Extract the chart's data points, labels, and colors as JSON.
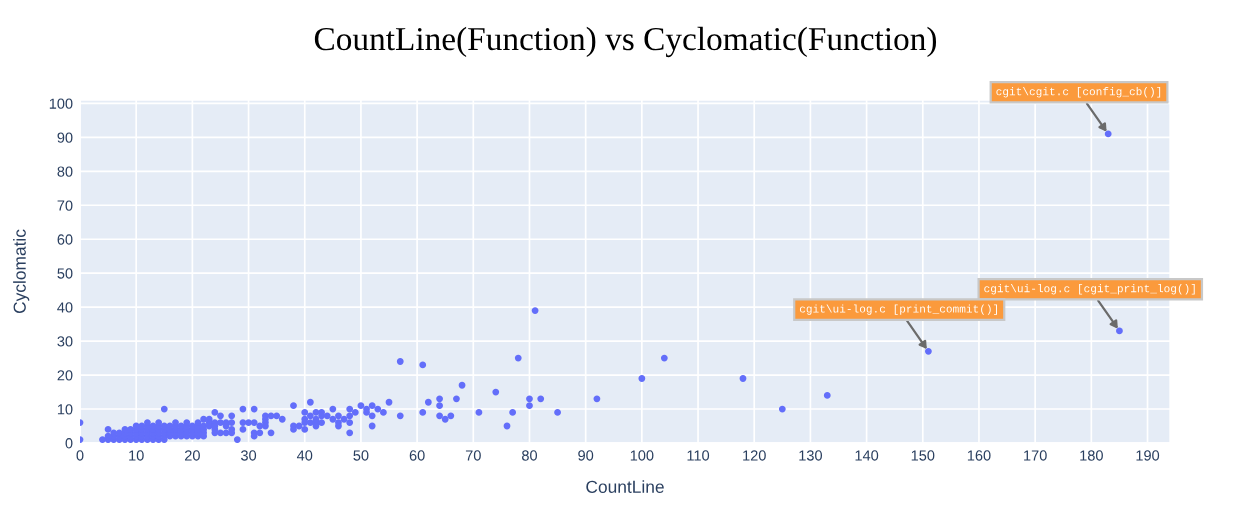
{
  "chart_data": {
    "type": "scatter",
    "title": "CountLine(Function) vs Cyclomatic(Function)",
    "xlabel": "CountLine",
    "ylabel": "Cyclomatic",
    "series": [
      {
        "color": "#636efa",
        "x": [
          4,
          5,
          6,
          7,
          8,
          9,
          10,
          11,
          12,
          13,
          14,
          15,
          5,
          6,
          7,
          8,
          9,
          10,
          11,
          12,
          13,
          14,
          15,
          16,
          17,
          18,
          19,
          20,
          21,
          22,
          6,
          7,
          8,
          9,
          10,
          11,
          12,
          13,
          14,
          15,
          16,
          17,
          18,
          19,
          20,
          21,
          22,
          8,
          9,
          10,
          11,
          12,
          13,
          14,
          15,
          16,
          17,
          18,
          19,
          20,
          21,
          22,
          10,
          11,
          12,
          13,
          14,
          15,
          16,
          17,
          18,
          19,
          20,
          21,
          22,
          0,
          0,
          5,
          15,
          12,
          14,
          17,
          19,
          21,
          22,
          23,
          23,
          23,
          24,
          24,
          24,
          24,
          24,
          25,
          25,
          25,
          26,
          26,
          26,
          27,
          27,
          27,
          27,
          28,
          29,
          29,
          29,
          30,
          31,
          31,
          31,
          31,
          32,
          32,
          33,
          33,
          33,
          33,
          34,
          34,
          35,
          36,
          38,
          38,
          38,
          39,
          40,
          40,
          40,
          40,
          41,
          41,
          41,
          42,
          42,
          42,
          42,
          43,
          43,
          43,
          44,
          45,
          45,
          46,
          46,
          46,
          47,
          48,
          48,
          48,
          48,
          49,
          50,
          51,
          51,
          52,
          52,
          52,
          53,
          54,
          55,
          57,
          57,
          61,
          61,
          62,
          64,
          64,
          64,
          65,
          66,
          67,
          68,
          71,
          74,
          76,
          77,
          78,
          80,
          80,
          81,
          82,
          85,
          92,
          100,
          104,
          118,
          125,
          133,
          151,
          183,
          185
        ],
        "values": [
          1,
          1,
          1,
          1,
          1,
          1,
          1,
          1,
          1,
          1,
          1,
          1,
          2,
          2,
          2,
          2,
          2,
          2,
          2,
          2,
          2,
          2,
          2,
          2,
          2,
          2,
          2,
          2,
          2,
          2,
          3,
          3,
          3,
          3,
          3,
          3,
          3,
          3,
          3,
          3,
          3,
          3,
          3,
          3,
          3,
          3,
          3,
          4,
          4,
          4,
          4,
          4,
          4,
          4,
          4,
          4,
          4,
          4,
          4,
          4,
          4,
          4,
          5,
          5,
          5,
          5,
          5,
          5,
          5,
          5,
          5,
          5,
          5,
          5,
          5,
          6,
          1,
          4,
          10,
          6,
          6,
          6,
          6,
          6,
          7,
          7,
          6,
          5,
          9,
          6,
          5,
          4,
          3,
          8,
          6,
          3,
          6,
          5,
          3,
          8,
          6,
          4,
          3,
          1,
          10,
          6,
          4,
          6,
          10,
          6,
          3,
          2,
          5,
          3,
          8,
          7,
          6,
          5,
          8,
          3,
          8,
          7,
          11,
          5,
          4,
          5,
          9,
          7,
          6,
          4,
          12,
          8,
          6,
          9,
          7,
          6,
          5,
          9,
          8,
          6,
          8,
          10,
          7,
          8,
          6,
          5,
          7,
          10,
          8,
          6,
          3,
          9,
          11,
          10,
          9,
          11,
          8,
          5,
          10,
          9,
          12,
          24,
          8,
          23,
          9,
          12,
          13,
          11,
          8,
          7,
          8,
          13,
          17,
          9,
          15,
          5,
          9,
          25,
          13,
          11,
          39,
          13,
          9,
          13,
          19,
          25,
          19,
          10,
          14,
          27,
          91,
          33
        ]
      }
    ],
    "xlim": [
      0,
      194
    ],
    "ylim": [
      0,
      101
    ],
    "xticks": [
      0,
      10,
      20,
      30,
      40,
      50,
      60,
      70,
      80,
      90,
      100,
      110,
      120,
      130,
      140,
      150,
      160,
      170,
      180,
      190
    ],
    "yticks": [
      0,
      10,
      20,
      30,
      40,
      50,
      60,
      70,
      80,
      90,
      100
    ],
    "grid": true,
    "marker": "circle",
    "annotations": [
      {
        "text": "cgit\\cgit.c [config_cb()]",
        "x": 183,
        "y": 91
      },
      {
        "text": "cgit\\ui-log.c [cgit_print_log()]",
        "x": 185,
        "y": 33
      },
      {
        "text": "cgit\\ui-log.c [print_commit()]",
        "x": 151,
        "y": 27
      }
    ]
  }
}
